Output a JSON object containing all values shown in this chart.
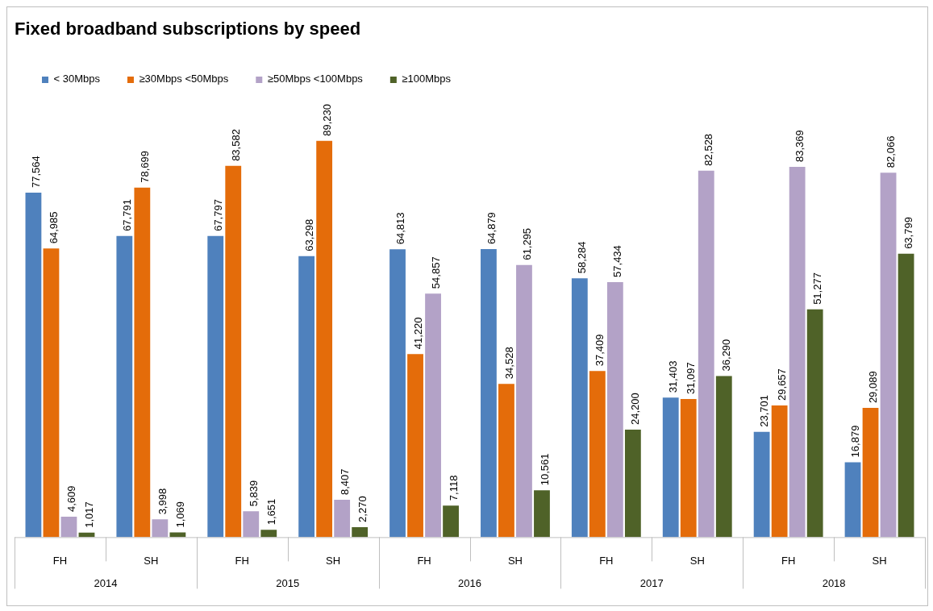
{
  "chart_data": {
    "type": "bar",
    "title": "Fixed broadband subscriptions by speed",
    "categories": [
      "FH",
      "SH",
      "FH",
      "SH",
      "FH",
      "SH",
      "FH",
      "SH",
      "FH",
      "SH"
    ],
    "annotations": [
      "2014",
      "2015",
      "2016",
      "2017",
      "2018"
    ],
    "series": [
      {
        "name": "< 30Mbps",
        "color": "#4f81bd",
        "values": [
          77564,
          67791,
          67797,
          63298,
          64813,
          64879,
          58284,
          31403,
          23701,
          16879
        ],
        "value_labels": [
          "77,564",
          "67,791",
          "67,797",
          "63,298",
          "64,813",
          "64,879",
          "58,284",
          "31,403",
          "23,701",
          "16,879"
        ]
      },
      {
        "name": "≥30Mbps <50Mbps",
        "color": "#e46c0a",
        "values": [
          64985,
          78699,
          83582,
          89230,
          41220,
          34528,
          37409,
          31097,
          29657,
          29089
        ],
        "value_labels": [
          "64,985",
          "78,699",
          "83,582",
          "89,230",
          "41,220",
          "34,528",
          "37,409",
          "31,097",
          "29,657",
          "29,089"
        ]
      },
      {
        "name": "≥50Mbps <100Mbps",
        "color": "#b3a2c7",
        "values": [
          4609,
          3998,
          5839,
          8407,
          54857,
          61295,
          57434,
          82528,
          83369,
          82066
        ],
        "value_labels": [
          "4,609",
          "3,998",
          "5,839",
          "8,407",
          "54,857",
          "61,295",
          "57,434",
          "82,528",
          "83,369",
          "82,066"
        ]
      },
      {
        "name": "≥100Mbps",
        "color": "#4f6228",
        "values": [
          1017,
          1069,
          1651,
          2270,
          7118,
          10561,
          24200,
          36290,
          51277,
          63799
        ],
        "value_labels": [
          "1,017",
          "1,069",
          "1,651",
          "2,270",
          "7,118",
          "10,561",
          "24,200",
          "36,290",
          "51,277",
          "63,799"
        ]
      }
    ],
    "legend": "top left",
    "tick_labels": "x"
  }
}
